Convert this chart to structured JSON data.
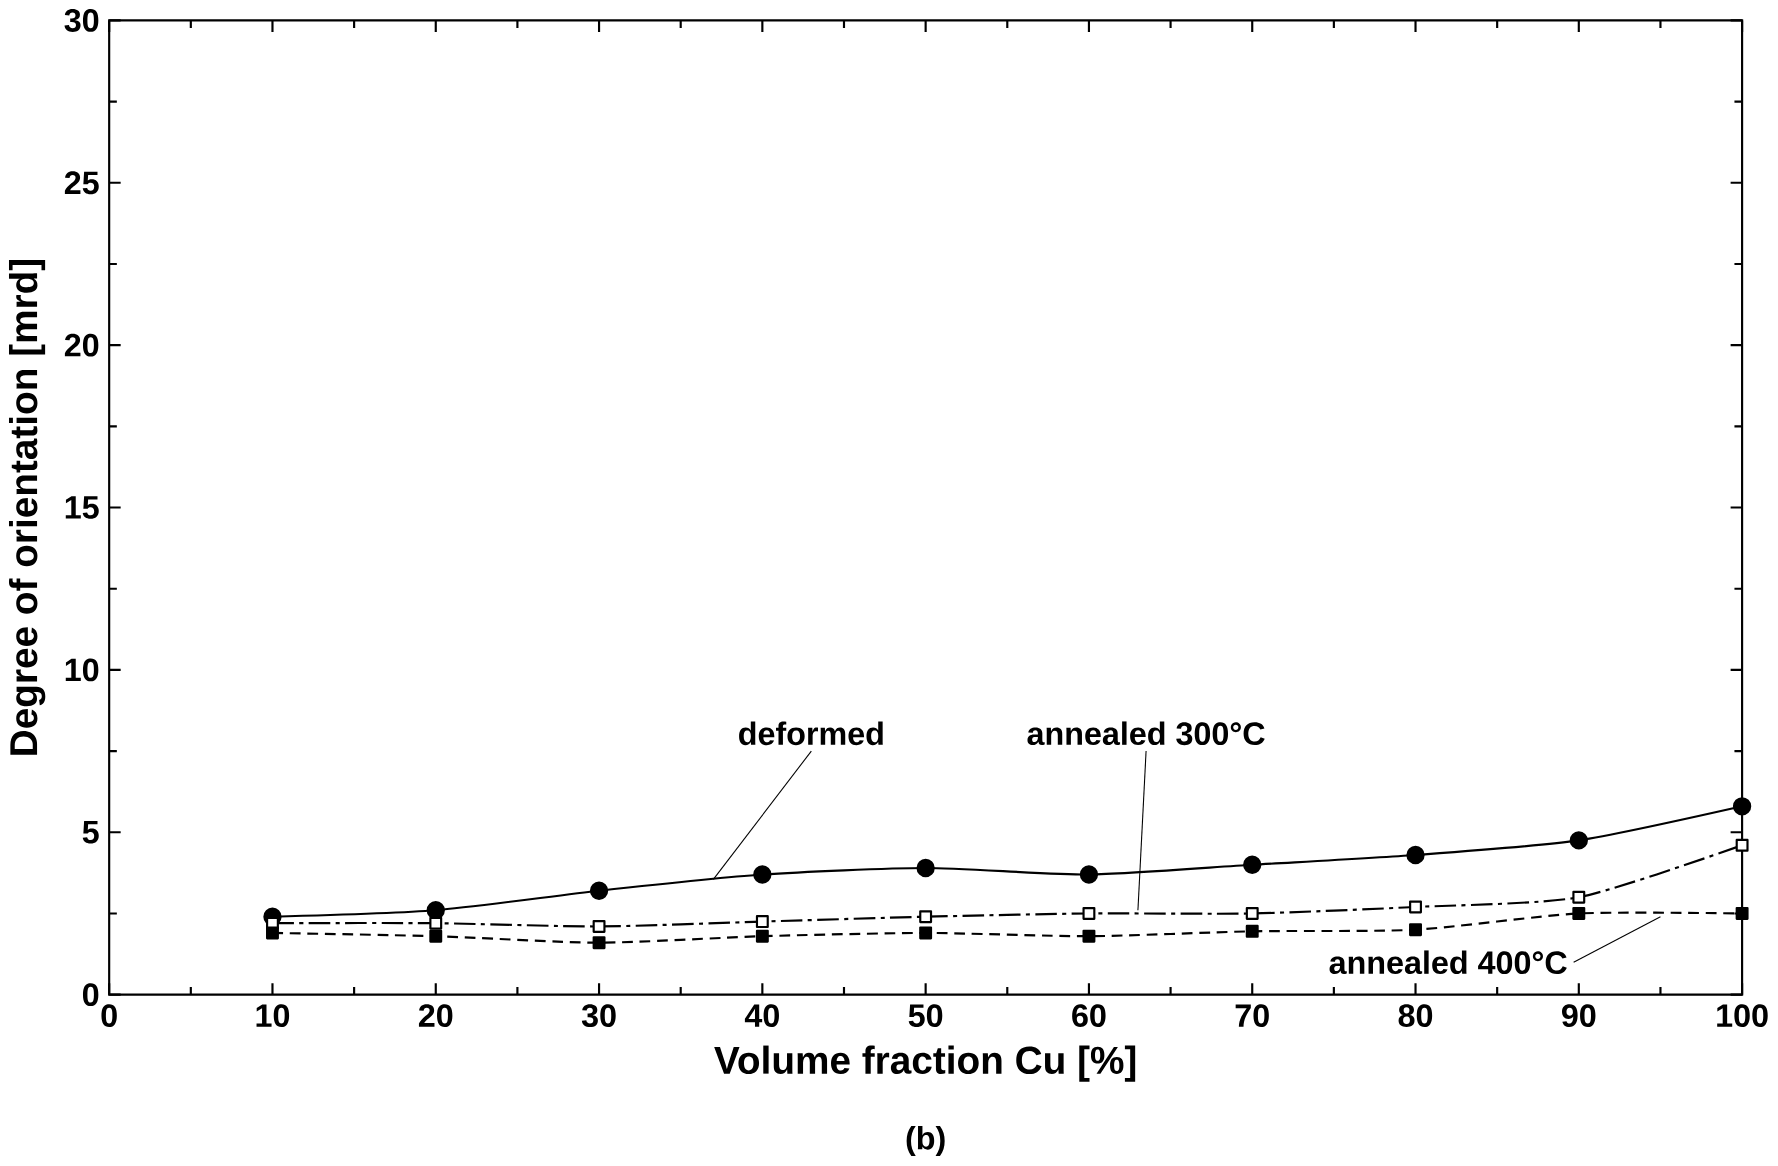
{
  "chart_data": {
    "type": "line",
    "xlabel": "Volume fraction Cu [%]",
    "ylabel": "Degree of orientation [mrd]",
    "x": [
      10,
      20,
      30,
      40,
      50,
      60,
      70,
      80,
      90,
      100
    ],
    "xlim": [
      0,
      100
    ],
    "xticks": [
      0,
      10,
      20,
      30,
      40,
      50,
      60,
      70,
      80,
      90,
      100
    ],
    "ylim": [
      0,
      30
    ],
    "yticks": [
      0,
      5,
      10,
      15,
      20,
      25,
      30
    ],
    "grid": false,
    "legend": false,
    "series": [
      {
        "name": "deformed",
        "color": "#000000",
        "marker": "circle",
        "line_style": "solid",
        "values": [
          2.4,
          2.6,
          3.2,
          3.7,
          3.9,
          3.7,
          4.0,
          4.3,
          4.75,
          5.8
        ]
      },
      {
        "name": "annealed 300°C",
        "color": "#000000",
        "marker": "square",
        "line_style": "dashdot",
        "values": [
          2.2,
          2.2,
          2.1,
          2.25,
          2.4,
          2.5,
          2.5,
          2.7,
          3.0,
          4.6
        ]
      },
      {
        "name": "annealed 400°C",
        "color": "#000000",
        "marker": "square",
        "line_style": "dashed",
        "values": [
          1.9,
          1.8,
          1.6,
          1.8,
          1.9,
          1.8,
          1.95,
          2.0,
          2.5,
          2.5
        ]
      }
    ],
    "annotations": [
      "(b)"
    ]
  }
}
